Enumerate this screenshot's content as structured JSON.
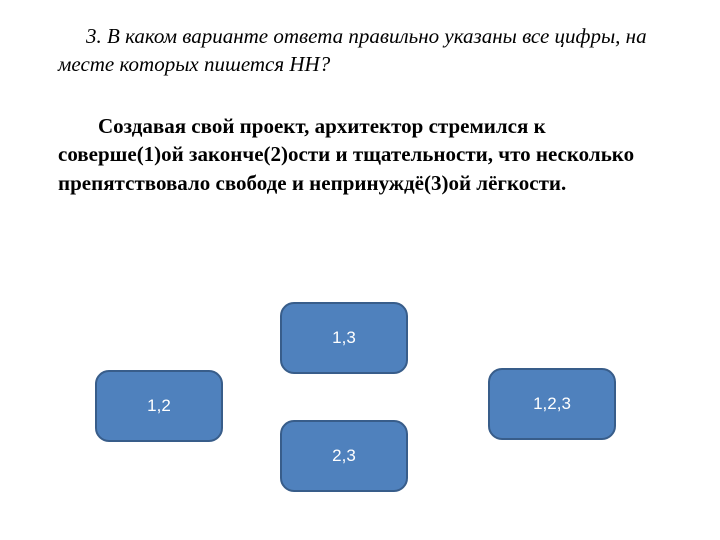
{
  "question": {
    "prompt": "3. В каком варианте ответа правильно указаны все цифры, на месте которых пишется НН?",
    "body": "Создавая свой проект, архитектор стремился к соверше(1)ой законче(2)ости и тщательности, что несколько препятствовало свободе и непринуждё(3)ой лёгкости."
  },
  "answers": {
    "a": "1,2",
    "b": "1,3",
    "c": "2,3",
    "d": "1,2,3"
  },
  "styles": {
    "button_bg": "#4f81bd",
    "button_border": "#385d8a",
    "button_text_color": "#ffffff",
    "button_radius": 14,
    "button_width": 128,
    "button_height": 72,
    "prompt_fontsize": 21,
    "body_fontsize": 21,
    "background": "#ffffff"
  }
}
